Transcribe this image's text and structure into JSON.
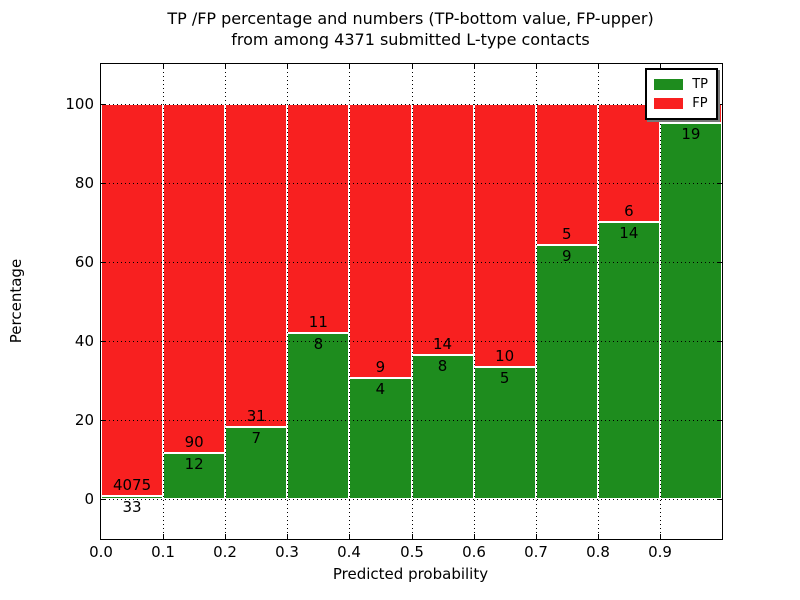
{
  "title": {
    "line1": "TP /FP percentage and numbers (TP-bottom value, FP-upper)",
    "line2": "from among 4371 submitted L-type contacts"
  },
  "axes": {
    "xlabel": "Predicted probability",
    "ylabel": "Percentage",
    "xtick_labels": [
      "0.0",
      "0.1",
      "0.2",
      "0.3",
      "0.4",
      "0.5",
      "0.6",
      "0.7",
      "0.8",
      "0.9"
    ],
    "ytick_labels": [
      "0",
      "20",
      "40",
      "60",
      "80",
      "100"
    ],
    "ytick_values": [
      0,
      20,
      40,
      60,
      80,
      100
    ],
    "ylim": [
      -10,
      110
    ],
    "xlim": [
      0.0,
      1.0
    ]
  },
  "legend": {
    "items": [
      {
        "label": "TP",
        "color": "#1e8c1e"
      },
      {
        "label": "FP",
        "color": "#f82020"
      }
    ]
  },
  "colors": {
    "tp_green": "#1e8c1e",
    "fp_red": "#f82020",
    "grid": "#000000",
    "text": "#000000",
    "background": "#ffffff"
  },
  "chart_data": {
    "type": "bar",
    "variant": "stacked-percentage",
    "title": "TP /FP percentage and numbers (TP-bottom value, FP-upper) from among 4371 submitted L-type contacts",
    "xlabel": "Predicted probability",
    "ylabel": "Percentage",
    "total_contacts": 4371,
    "bin_edges": [
      0.0,
      0.1,
      0.2,
      0.3,
      0.4,
      0.5,
      0.6,
      0.7,
      0.8,
      0.9,
      1.0
    ],
    "categories": [
      "0.0-0.1",
      "0.1-0.2",
      "0.2-0.3",
      "0.3-0.4",
      "0.4-0.5",
      "0.5-0.6",
      "0.6-0.7",
      "0.7-0.8",
      "0.8-0.9",
      "0.9-1.0"
    ],
    "series": [
      {
        "name": "TP",
        "color": "#1e8c1e",
        "counts": [
          33,
          12,
          7,
          8,
          4,
          8,
          5,
          9,
          14,
          19
        ],
        "pct": [
          0.8,
          11.76,
          18.42,
          42.11,
          30.77,
          36.36,
          33.33,
          64.29,
          70.0,
          95.0
        ]
      },
      {
        "name": "FP",
        "color": "#f82020",
        "counts": [
          4075,
          90,
          31,
          11,
          9,
          14,
          10,
          5,
          6,
          1
        ],
        "pct": [
          99.2,
          88.24,
          81.58,
          57.89,
          69.23,
          63.64,
          66.67,
          35.71,
          30.0,
          5.0
        ]
      }
    ],
    "visible_value_labels": {
      "tp": [
        "33",
        "12",
        "7",
        "8",
        "4",
        "8",
        "5",
        "9",
        "14",
        "19"
      ],
      "fp": [
        "4075",
        "90",
        "31",
        "11",
        "9",
        "14",
        "10",
        "5",
        "6",
        ""
      ]
    },
    "ylim": [
      -10,
      110
    ],
    "grid": "dotted",
    "legend_position": "upper right"
  }
}
